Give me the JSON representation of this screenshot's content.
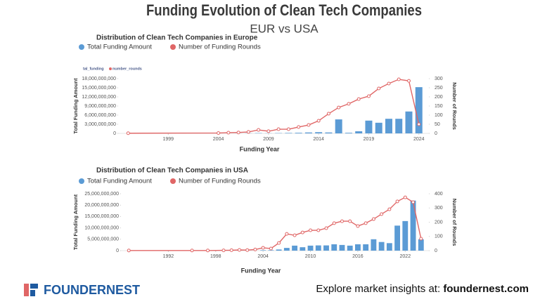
{
  "header": {
    "title": "Funding Evolution of Clean Tech Companies",
    "subtitle": "EUR vs USA"
  },
  "chart_data": [
    {
      "type": "bar-line",
      "title": "Distribution of Clean Tech Companies in Europe",
      "small_legend": [
        "tal_funding",
        "number_rounds"
      ],
      "x_label": "Funding Year",
      "y_label": "Total Funding Amount",
      "y2_label": "Number of Rounds",
      "x": [
        1995,
        2004,
        2005,
        2006,
        2007,
        2008,
        2009,
        2010,
        2011,
        2012,
        2013,
        2014,
        2015,
        2016,
        2017,
        2018,
        2019,
        2020,
        2021,
        2022,
        2023,
        2024
      ],
      "series": [
        {
          "name": "Total Funding Amount",
          "color": "#5b9bd5",
          "mark": "bar",
          "values": [
            0,
            0,
            0,
            20000000,
            50000000,
            100000000,
            50000000,
            100000000,
            150000000,
            200000000,
            300000000,
            400000000,
            300000000,
            4600000000,
            200000000,
            700000000,
            4200000000,
            3500000000,
            4800000000,
            4800000000,
            7200000000,
            15200000000
          ]
        },
        {
          "name": "Number of Funding Rounds",
          "color": "#e06666",
          "mark": "line",
          "axis": "y2",
          "values": [
            1,
            2,
            4,
            5,
            8,
            19,
            12,
            23,
            23,
            35,
            46,
            69,
            108,
            142,
            162,
            188,
            204,
            246,
            273,
            296,
            288,
            50
          ]
        }
      ],
      "xlim": [
        1994,
        2025
      ],
      "xticks": [
        1999,
        2004,
        2009,
        2014,
        2019,
        2024
      ],
      "ylim": [
        0,
        18000000000
      ],
      "yticks": [
        0,
        {
          "value": 3000000000,
          "label": "3,000,000,000"
        },
        {
          "value": 6000000000,
          "label": "6,000,000,000"
        },
        {
          "value": 9000000000,
          "label": "9,000,000,000"
        },
        {
          "value": 12000000000,
          "label": "12,000,000,000"
        },
        {
          "value": 15000000000,
          "label": "15,000,000,000"
        },
        {
          "value": 18000000000,
          "label": "18,000,000,000"
        }
      ],
      "y2lim": [
        0,
        300
      ],
      "y2ticks": [
        0,
        50,
        100,
        150,
        200,
        250,
        300
      ]
    },
    {
      "type": "bar-line",
      "title": "Distribution of Clean Tech Companies in USA",
      "x_label": "Funding Year",
      "y_label": "Total Funding Amount",
      "y2_label": "Number of Rounds",
      "x": [
        1987,
        1995,
        1997,
        1999,
        2000,
        2001,
        2002,
        2003,
        2004,
        2005,
        2006,
        2007,
        2008,
        2009,
        2010,
        2011,
        2012,
        2013,
        2014,
        2015,
        2016,
        2017,
        2018,
        2019,
        2020,
        2021,
        2022,
        2023,
        2024
      ],
      "series": [
        {
          "name": "Total Funding Amount",
          "color": "#5b9bd5",
          "mark": "bar",
          "values": [
            0,
            0,
            0,
            0,
            0,
            0,
            0,
            0,
            200000000,
            200000000,
            500000000,
            1200000000,
            2200000000,
            1500000000,
            2200000000,
            2300000000,
            2300000000,
            2800000000,
            2500000000,
            2200000000,
            2800000000,
            2800000000,
            5000000000,
            3800000000,
            3300000000,
            11000000000,
            13000000000,
            22000000000,
            5000000000
          ]
        },
        {
          "name": "Number of Funding Rounds",
          "color": "#e06666",
          "mark": "line",
          "axis": "y2",
          "values": [
            1,
            1,
            1,
            2,
            3,
            5,
            4,
            8,
            20,
            15,
            54,
            118,
            108,
            128,
            143,
            143,
            158,
            193,
            207,
            207,
            173,
            193,
            222,
            257,
            291,
            346,
            375,
            341,
            84
          ]
        }
      ],
      "xlim": [
        1986,
        2025
      ],
      "xticks": [
        1992,
        1998,
        2004,
        2010,
        2016,
        2022
      ],
      "ylim": [
        0,
        25000000000
      ],
      "yticks": [
        0,
        {
          "value": 5000000000,
          "label": "5,000,000,000"
        },
        {
          "value": 10000000000,
          "label": "10,000,000,000"
        },
        {
          "value": 15000000000,
          "label": "15,000,000,000"
        },
        {
          "value": 20000000000,
          "label": "20,000,000,000"
        },
        {
          "value": 25000000000,
          "label": "25,000,000,000"
        }
      ],
      "y2lim": [
        0,
        400
      ],
      "y2ticks": [
        0,
        100,
        200,
        300,
        400
      ]
    }
  ],
  "footer": {
    "brand": "FOUNDERNEST",
    "text": "Explore market insights at: ",
    "link": "foundernest.com"
  }
}
